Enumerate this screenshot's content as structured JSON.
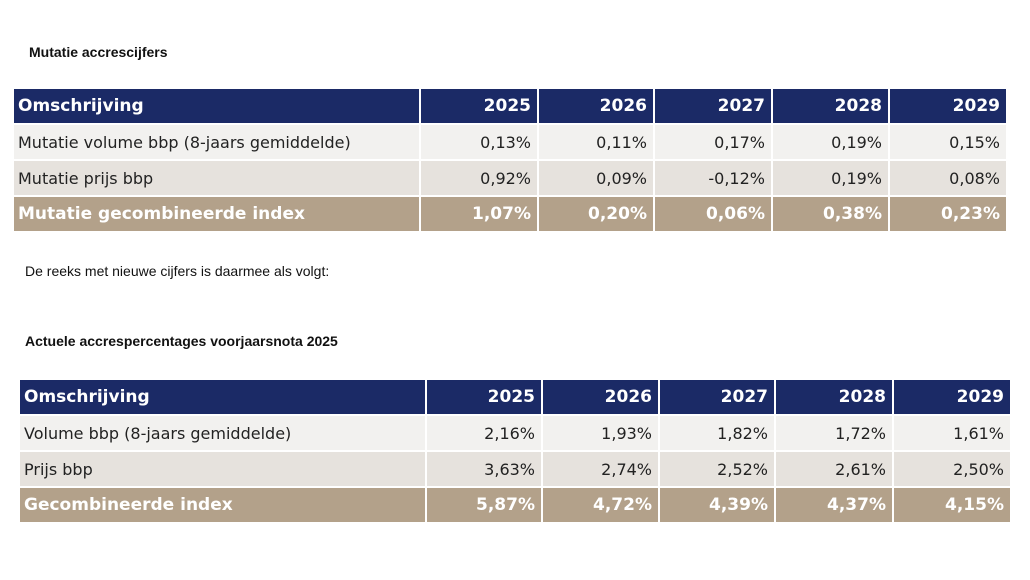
{
  "section1": {
    "title": "Mutatie accrescijfers",
    "headers": [
      "Omschrijving",
      "2025",
      "2026",
      "2027",
      "2028",
      "2029"
    ],
    "rows": [
      {
        "label": "Mutatie volume bbp (8-jaars gemiddelde)",
        "values": [
          "0,13%",
          "0,11%",
          "0,17%",
          "0,19%",
          "0,15%"
        ]
      },
      {
        "label": "Mutatie prijs bbp",
        "values": [
          "0,92%",
          "0,09%",
          "-0,12%",
          "0,19%",
          "0,08%"
        ]
      },
      {
        "label": "Mutatie gecombineerde index",
        "values": [
          "1,07%",
          "0,20%",
          "0,06%",
          "0,38%",
          "0,23%"
        ]
      }
    ]
  },
  "intro_text": "De reeks met nieuwe cijfers is daarmee als volgt:",
  "section2": {
    "title": "Actuele accrespercentages voorjaarsnota 2025",
    "headers": [
      "Omschrijving",
      "2025",
      "2026",
      "2027",
      "2028",
      "2029"
    ],
    "rows": [
      {
        "label": "Volume bbp (8-jaars gemiddelde)",
        "values": [
          "2,16%",
          "1,93%",
          "1,82%",
          "1,72%",
          "1,61%"
        ]
      },
      {
        "label": "Prijs bbp",
        "values": [
          "3,63%",
          "2,74%",
          "2,52%",
          "2,61%",
          "2,50%"
        ]
      },
      {
        "label": "Gecombineerde index",
        "values": [
          "5,87%",
          "4,72%",
          "4,39%",
          "4,37%",
          "4,15%"
        ]
      }
    ]
  },
  "colors": {
    "header_bg": "#1b2a66",
    "row_light": "#f2f1ef",
    "row_alt": "#e6e2dd",
    "total_bg": "#b3a18a"
  }
}
